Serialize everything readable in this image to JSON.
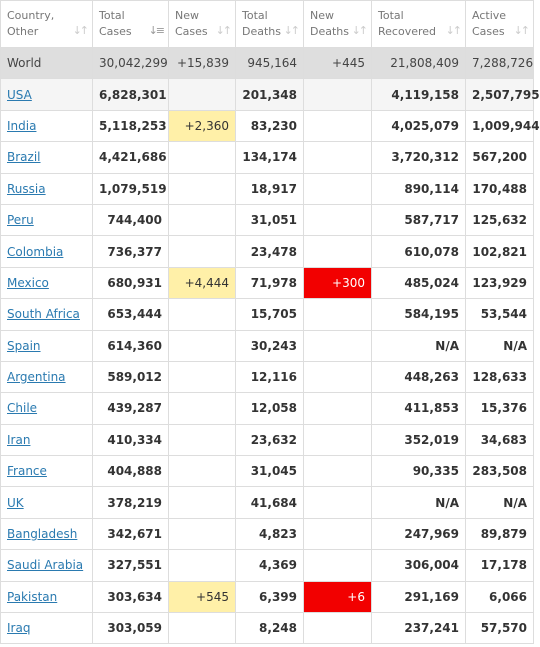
{
  "headers": {
    "country": [
      "Country,",
      "Other"
    ],
    "total_cases": [
      "Total",
      "Cases"
    ],
    "new_cases": [
      "New",
      "Cases"
    ],
    "total_deaths": [
      "Total",
      "Deaths"
    ],
    "new_deaths": [
      "New",
      "Deaths"
    ],
    "total_recovered": [
      "Total",
      "Recovered"
    ],
    "active_cases": [
      "Active",
      "Cases"
    ]
  },
  "world": {
    "country": "World",
    "total_cases": "30,042,299",
    "new_cases": "+15,839",
    "total_deaths": "945,164",
    "new_deaths": "+445",
    "total_recovered": "21,808,409",
    "active_cases": "7,288,726"
  },
  "rows": [
    {
      "country": "USA",
      "total_cases": "6,828,301",
      "new_cases": "",
      "total_deaths": "201,348",
      "new_deaths": "",
      "total_recovered": "4,119,158",
      "active_cases": "2,507,795"
    },
    {
      "country": "India",
      "total_cases": "5,118,253",
      "new_cases": "+2,360",
      "total_deaths": "83,230",
      "new_deaths": "",
      "total_recovered": "4,025,079",
      "active_cases": "1,009,944"
    },
    {
      "country": "Brazil",
      "total_cases": "4,421,686",
      "new_cases": "",
      "total_deaths": "134,174",
      "new_deaths": "",
      "total_recovered": "3,720,312",
      "active_cases": "567,200"
    },
    {
      "country": "Russia",
      "total_cases": "1,079,519",
      "new_cases": "",
      "total_deaths": "18,917",
      "new_deaths": "",
      "total_recovered": "890,114",
      "active_cases": "170,488"
    },
    {
      "country": "Peru",
      "total_cases": "744,400",
      "new_cases": "",
      "total_deaths": "31,051",
      "new_deaths": "",
      "total_recovered": "587,717",
      "active_cases": "125,632"
    },
    {
      "country": "Colombia",
      "total_cases": "736,377",
      "new_cases": "",
      "total_deaths": "23,478",
      "new_deaths": "",
      "total_recovered": "610,078",
      "active_cases": "102,821"
    },
    {
      "country": "Mexico",
      "total_cases": "680,931",
      "new_cases": "+4,444",
      "total_deaths": "71,978",
      "new_deaths": "+300",
      "total_recovered": "485,024",
      "active_cases": "123,929"
    },
    {
      "country": "South Africa",
      "total_cases": "653,444",
      "new_cases": "",
      "total_deaths": "15,705",
      "new_deaths": "",
      "total_recovered": "584,195",
      "active_cases": "53,544"
    },
    {
      "country": "Spain",
      "total_cases": "614,360",
      "new_cases": "",
      "total_deaths": "30,243",
      "new_deaths": "",
      "total_recovered": "N/A",
      "active_cases": "N/A"
    },
    {
      "country": "Argentina",
      "total_cases": "589,012",
      "new_cases": "",
      "total_deaths": "12,116",
      "new_deaths": "",
      "total_recovered": "448,263",
      "active_cases": "128,633"
    },
    {
      "country": "Chile",
      "total_cases": "439,287",
      "new_cases": "",
      "total_deaths": "12,058",
      "new_deaths": "",
      "total_recovered": "411,853",
      "active_cases": "15,376"
    },
    {
      "country": "Iran",
      "total_cases": "410,334",
      "new_cases": "",
      "total_deaths": "23,632",
      "new_deaths": "",
      "total_recovered": "352,019",
      "active_cases": "34,683"
    },
    {
      "country": "France",
      "total_cases": "404,888",
      "new_cases": "",
      "total_deaths": "31,045",
      "new_deaths": "",
      "total_recovered": "90,335",
      "active_cases": "283,508"
    },
    {
      "country": "UK",
      "total_cases": "378,219",
      "new_cases": "",
      "total_deaths": "41,684",
      "new_deaths": "",
      "total_recovered": "N/A",
      "active_cases": "N/A"
    },
    {
      "country": "Bangladesh",
      "total_cases": "342,671",
      "new_cases": "",
      "total_deaths": "4,823",
      "new_deaths": "",
      "total_recovered": "247,969",
      "active_cases": "89,879"
    },
    {
      "country": "Saudi Arabia",
      "total_cases": "327,551",
      "new_cases": "",
      "total_deaths": "4,369",
      "new_deaths": "",
      "total_recovered": "306,004",
      "active_cases": "17,178"
    },
    {
      "country": "Pakistan",
      "total_cases": "303,634",
      "new_cases": "+545",
      "total_deaths": "6,399",
      "new_deaths": "+6",
      "total_recovered": "291,169",
      "active_cases": "6,066"
    },
    {
      "country": "Iraq",
      "total_cases": "303,059",
      "new_cases": "",
      "total_deaths": "8,248",
      "new_deaths": "",
      "total_recovered": "237,241",
      "active_cases": "57,570"
    }
  ],
  "colors": {
    "new_cases_highlight": "#fff0a8",
    "new_deaths_highlight": "#f20000",
    "link": "#2a7ab0",
    "world_row": "#dedede"
  },
  "icons": {
    "sort": "sort-arrows-icon",
    "sort_active": "sort-desc-icon"
  }
}
